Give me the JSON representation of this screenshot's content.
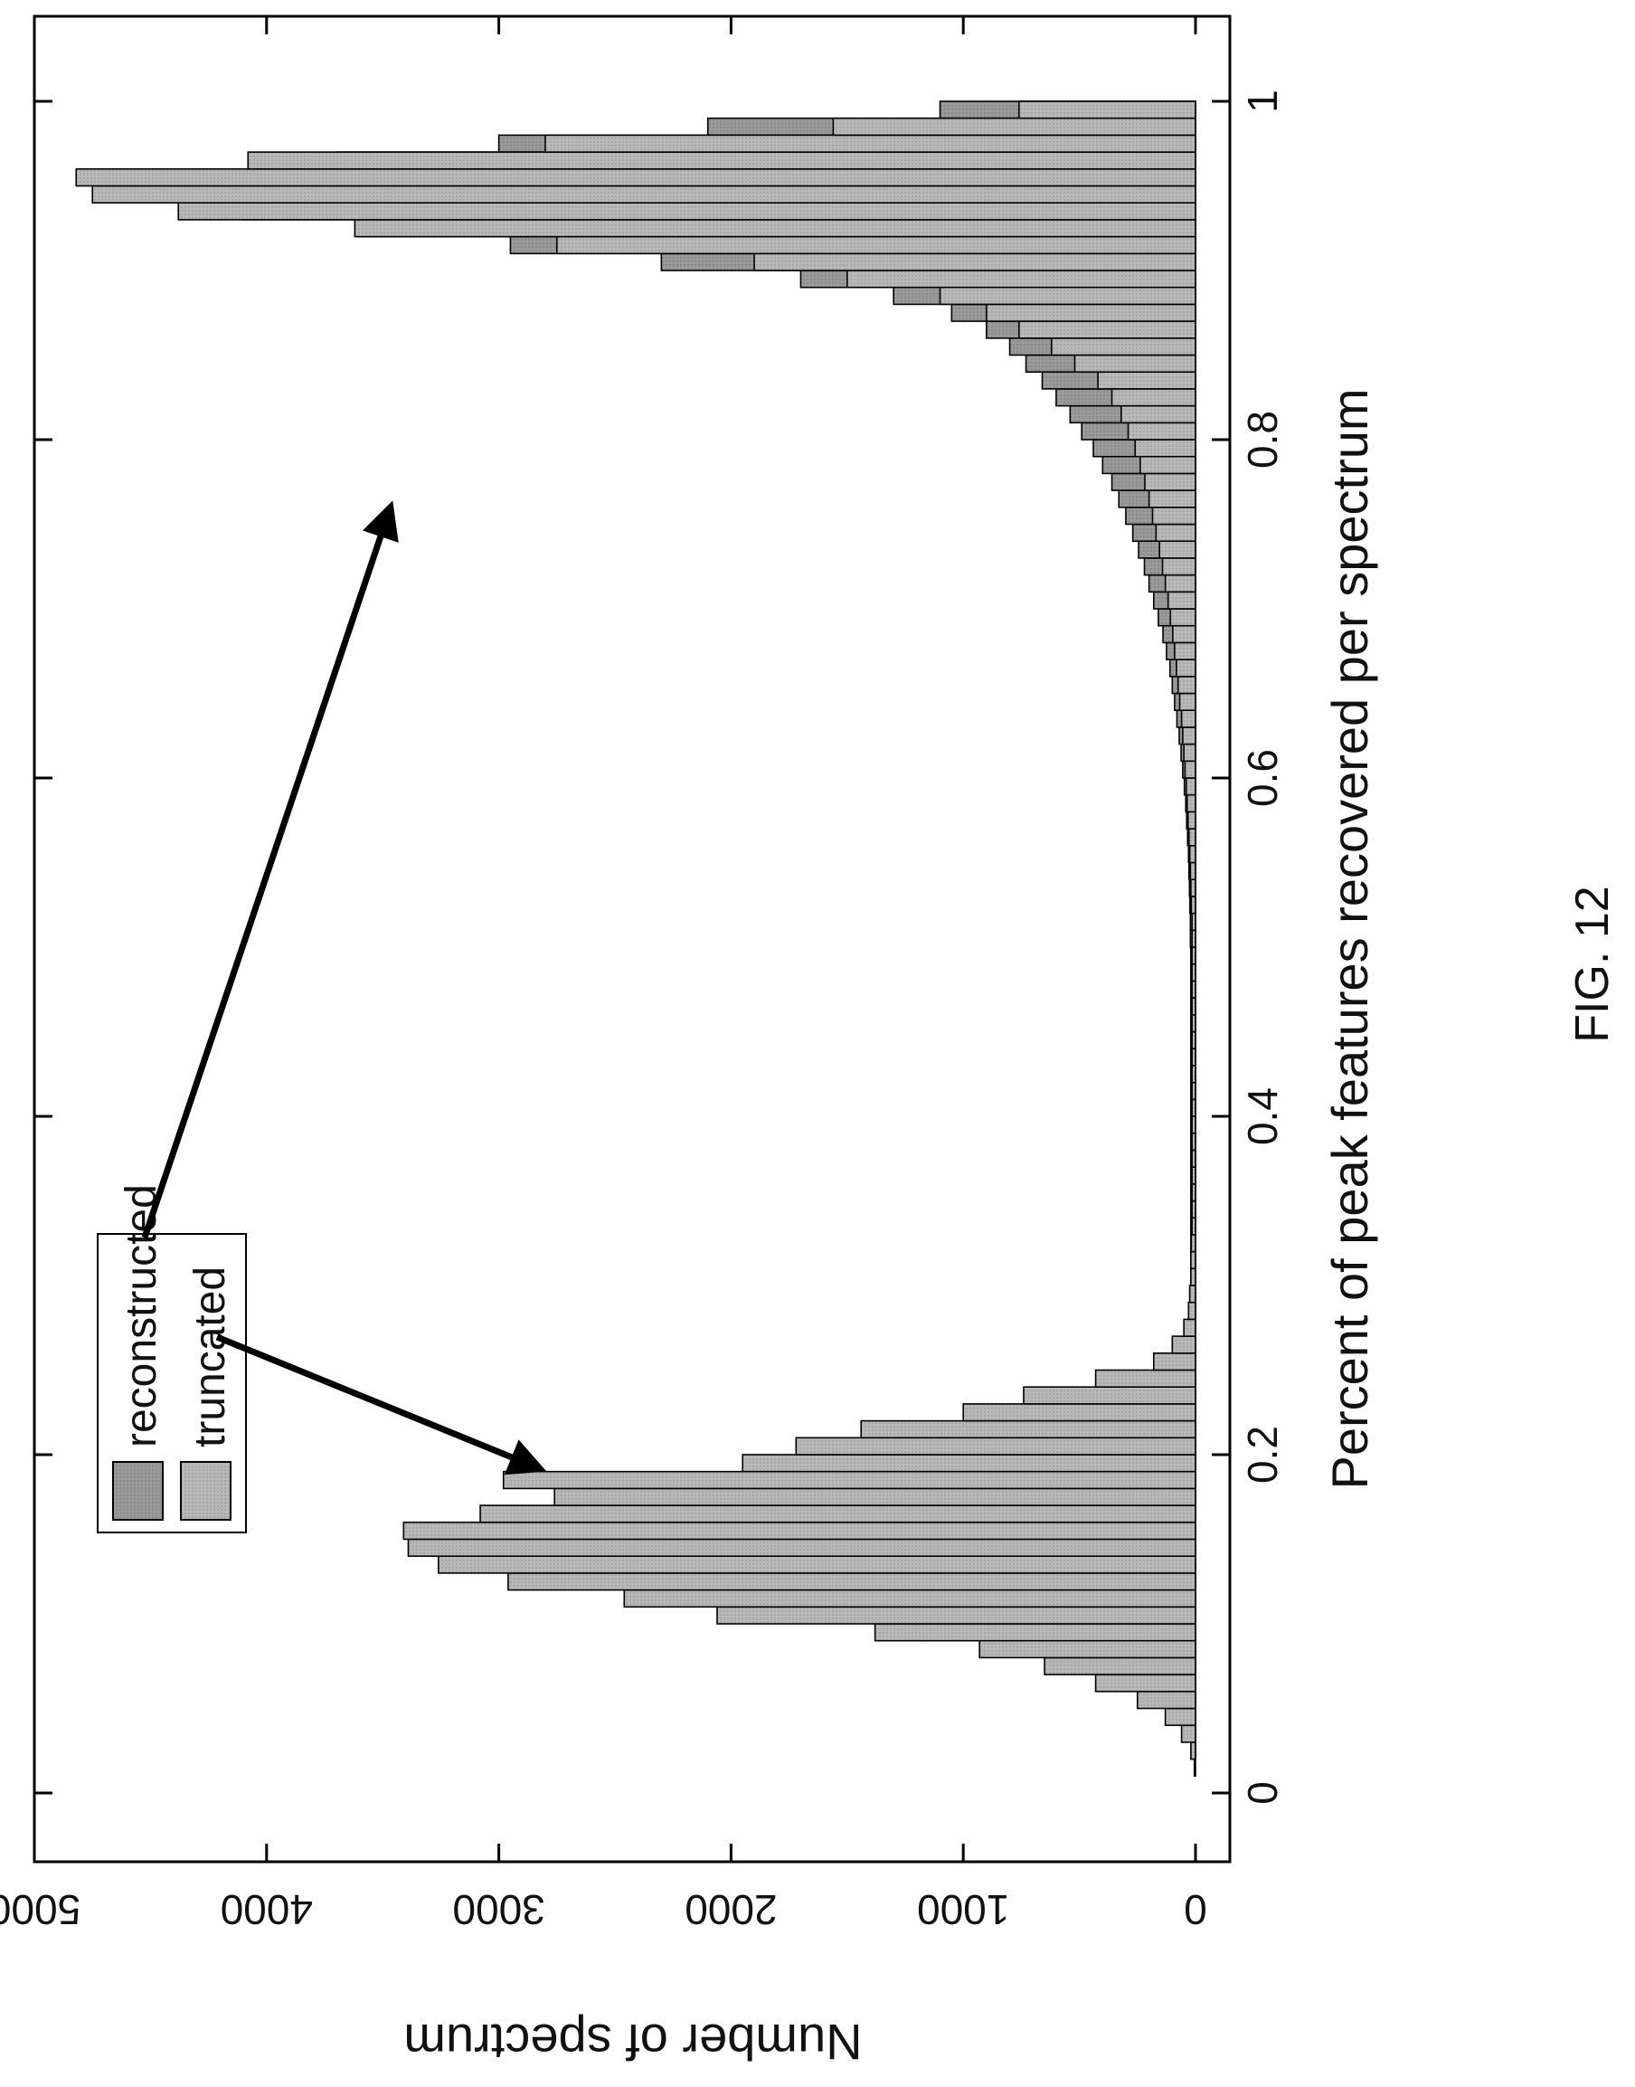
{
  "figure_label": "FIG. 12",
  "chart_data": {
    "type": "bar",
    "orientation": "rotated-90-clockwise",
    "xlabel": "Percent of peak features recovered per spectrum",
    "ylabel": "Number of spectrum",
    "xlim": [
      0,
      1
    ],
    "ylim": [
      0,
      5000
    ],
    "xticks": [
      0,
      0.2,
      0.4,
      0.6,
      0.8,
      1
    ],
    "xtick_labels": [
      "0",
      "0.2",
      "0.4",
      "0.6",
      "0.8",
      "1"
    ],
    "yticks": [
      0,
      1000,
      2000,
      3000,
      4000,
      5000
    ],
    "ytick_labels": [
      "0",
      "1000",
      "2000",
      "3000",
      "4000",
      "5000"
    ],
    "bin_width": 0.01,
    "legend": {
      "placement": "upper-left",
      "entries": [
        "reconstructed",
        "truncated"
      ]
    },
    "series": [
      {
        "name": "reconstructed",
        "color": "#9a9a9a",
        "x": [
          0.01,
          0.02,
          0.03,
          0.04,
          0.05,
          0.06,
          0.07,
          0.08,
          0.09,
          0.1,
          0.11,
          0.12,
          0.13,
          0.14,
          0.15,
          0.16,
          0.17,
          0.18,
          0.19,
          0.2,
          0.21,
          0.22,
          0.23,
          0.24,
          0.25,
          0.26,
          0.27,
          0.28,
          0.29,
          0.3,
          0.31,
          0.32,
          0.33,
          0.34,
          0.35,
          0.36,
          0.37,
          0.38,
          0.39,
          0.4,
          0.41,
          0.42,
          0.43,
          0.44,
          0.45,
          0.46,
          0.47,
          0.48,
          0.49,
          0.5,
          0.51,
          0.52,
          0.53,
          0.54,
          0.55,
          0.56,
          0.57,
          0.58,
          0.59,
          0.6,
          0.61,
          0.62,
          0.63,
          0.64,
          0.65,
          0.66,
          0.67,
          0.68,
          0.69,
          0.7,
          0.71,
          0.72,
          0.73,
          0.74,
          0.75,
          0.76,
          0.77,
          0.78,
          0.79,
          0.8,
          0.81,
          0.82,
          0.83,
          0.84,
          0.85,
          0.86,
          0.87,
          0.88,
          0.89,
          0.9,
          0.91,
          0.92,
          0.93,
          0.94,
          0.95,
          0.96,
          0.97,
          0.98,
          0.99,
          1.0
        ],
        "values": [
          0,
          0,
          10,
          20,
          40,
          70,
          110,
          170,
          250,
          350,
          480,
          620,
          780,
          940,
          1080,
          1150,
          1100,
          980,
          800,
          620,
          440,
          280,
          160,
          90,
          55,
          40,
          32,
          28,
          25,
          22,
          20,
          20,
          20,
          20,
          20,
          20,
          20,
          20,
          20,
          20,
          20,
          20,
          20,
          20,
          20,
          20,
          20,
          20,
          20,
          20,
          22,
          22,
          24,
          26,
          28,
          30,
          34,
          38,
          42,
          48,
          55,
          62,
          70,
          80,
          90,
          100,
          110,
          125,
          140,
          160,
          180,
          200,
          220,
          245,
          270,
          300,
          330,
          360,
          400,
          440,
          490,
          540,
          600,
          660,
          730,
          800,
          900,
          1050,
          1300,
          1700,
          2300,
          2950,
          3600,
          4100,
          4350,
          4200,
          3700,
          3000,
          2100,
          1100
        ]
      },
      {
        "name": "truncated",
        "color": "#b4b4b4",
        "x": [
          0.01,
          0.02,
          0.03,
          0.04,
          0.05,
          0.06,
          0.07,
          0.08,
          0.09,
          0.1,
          0.11,
          0.12,
          0.13,
          0.14,
          0.15,
          0.16,
          0.17,
          0.18,
          0.19,
          0.2,
          0.21,
          0.22,
          0.23,
          0.24,
          0.25,
          0.26,
          0.27,
          0.28,
          0.29,
          0.3,
          0.31,
          0.32,
          0.33,
          0.34,
          0.35,
          0.36,
          0.37,
          0.38,
          0.39,
          0.4,
          0.41,
          0.42,
          0.43,
          0.44,
          0.45,
          0.46,
          0.47,
          0.48,
          0.49,
          0.5,
          0.51,
          0.52,
          0.53,
          0.54,
          0.55,
          0.56,
          0.57,
          0.58,
          0.59,
          0.6,
          0.61,
          0.62,
          0.63,
          0.64,
          0.65,
          0.66,
          0.67,
          0.68,
          0.69,
          0.7,
          0.71,
          0.72,
          0.73,
          0.74,
          0.75,
          0.76,
          0.77,
          0.78,
          0.79,
          0.8,
          0.81,
          0.82,
          0.83,
          0.84,
          0.85,
          0.86,
          0.87,
          0.88,
          0.89,
          0.9,
          0.91,
          0.92,
          0.93,
          0.94,
          0.95,
          0.96,
          0.97,
          0.98,
          0.99,
          1.0
        ],
        "values": [
          0,
          5,
          20,
          60,
          130,
          250,
          430,
          650,
          930,
          1380,
          2060,
          2460,
          2960,
          3260,
          3390,
          3410,
          3080,
          2760,
          2980,
          1950,
          1720,
          1440,
          1000,
          740,
          430,
          180,
          100,
          50,
          30,
          25,
          20,
          20,
          18,
          15,
          15,
          15,
          15,
          15,
          15,
          15,
          15,
          15,
          15,
          15,
          15,
          15,
          15,
          15,
          15,
          15,
          15,
          15,
          18,
          20,
          22,
          25,
          28,
          32,
          36,
          40,
          45,
          50,
          55,
          60,
          68,
          75,
          82,
          90,
          98,
          108,
          118,
          130,
          142,
          155,
          170,
          185,
          200,
          218,
          238,
          260,
          290,
          320,
          360,
          420,
          520,
          620,
          760,
          900,
          1100,
          1500,
          1900,
          2750,
          3620,
          4380,
          4750,
          4820,
          4080,
          2800,
          1560,
          760
        ]
      }
    ],
    "annotations": [
      {
        "type": "arrow",
        "from_legend": "reconstructed",
        "points_to": "right-peak"
      },
      {
        "type": "arrow",
        "from_legend": "truncated",
        "points_to": "left-peak"
      }
    ]
  }
}
